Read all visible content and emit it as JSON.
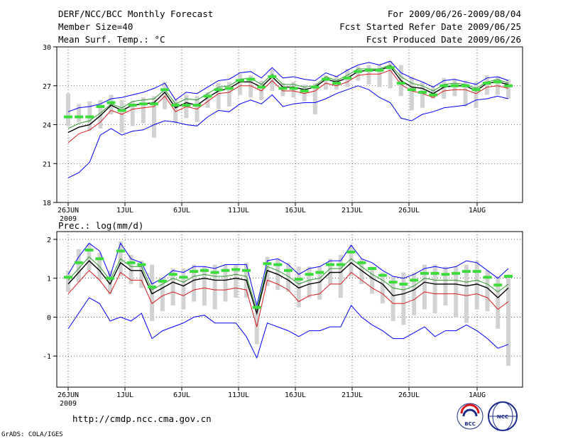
{
  "header": {
    "title": "DERF/NCC/BCC Monthly Forecast",
    "member": "Member Size=40",
    "variable": "Mean Surf. Temp.: °C",
    "period": "For 2009/06/26-2009/08/04",
    "refer": "Fcst Started Refer Date 2009/06/25",
    "produced": "Fcst Produced Date 2009/06/26"
  },
  "footer": {
    "url": "http://cmdp.ncc.cma.gov.cn",
    "grads": "GrADS: COLA/IGES",
    "logo1": "BCC",
    "logo2": "NCC"
  },
  "colors": {
    "box": "#d2d2d2",
    "median": "#3cdc3c",
    "max": "#0000ff",
    "mean": "#000000",
    "p1": "#d7191c",
    "p2": "#2c9a2c"
  },
  "chart_data": [
    {
      "type": "line",
      "title": "Mean Surf. Temp.: °C",
      "x_ticks": [
        "26JUN",
        "1JUL",
        "6JUL",
        "11JUL",
        "16JUL",
        "21JUL",
        "26JUL",
        "1AUG"
      ],
      "x_year": "2009",
      "y_ticks": [
        "18",
        "21",
        "24",
        "27",
        "30"
      ],
      "ylim": [
        18,
        30
      ],
      "days": 39,
      "series": [
        {
          "name": "max",
          "values": [
            25.0,
            25.3,
            25.4,
            25.6,
            26.0,
            26.1,
            26.3,
            26.5,
            26.8,
            27.2,
            25.9,
            26.5,
            26.4,
            26.9,
            27.4,
            27.5,
            28.0,
            28.1,
            27.6,
            28.4,
            27.6,
            27.7,
            27.5,
            27.4,
            28.0,
            27.7,
            28.2,
            28.6,
            28.8,
            28.6,
            28.9,
            28.0,
            27.6,
            27.3,
            26.9,
            27.4,
            27.5,
            27.3,
            27.1,
            27.6,
            27.7,
            27.4
          ]
        },
        {
          "name": "ens-upper",
          "values": [
            23.7,
            24.1,
            24.3,
            24.9,
            25.6,
            25.3,
            25.8,
            25.9,
            26.0,
            26.7,
            25.6,
            26.0,
            25.9,
            26.4,
            26.9,
            27.0,
            27.5,
            27.6,
            27.1,
            27.9,
            27.1,
            27.1,
            26.9,
            27.0,
            27.7,
            27.4,
            27.8,
            28.3,
            28.3,
            28.3,
            28.6,
            27.7,
            27.2,
            27.0,
            26.6,
            27.1,
            27.2,
            27.1,
            26.8,
            27.3,
            27.5,
            27.2
          ]
        },
        {
          "name": "ens-mean",
          "values": [
            23.4,
            23.8,
            24.0,
            24.7,
            25.5,
            25.1,
            25.5,
            25.6,
            25.7,
            26.5,
            25.3,
            25.7,
            25.5,
            26.1,
            26.6,
            26.8,
            27.3,
            27.3,
            26.9,
            27.7,
            26.9,
            26.9,
            26.7,
            26.9,
            27.5,
            27.3,
            27.6,
            28.1,
            28.2,
            28.2,
            28.5,
            27.4,
            26.9,
            26.8,
            26.4,
            26.9,
            27.0,
            27.0,
            26.6,
            27.2,
            27.3,
            27.1
          ]
        },
        {
          "name": "ens-lower",
          "values": [
            22.6,
            23.3,
            23.6,
            24.2,
            25.1,
            24.8,
            25.2,
            25.3,
            25.4,
            26.2,
            25.0,
            25.4,
            25.2,
            25.8,
            26.4,
            26.5,
            27.0,
            27.0,
            26.6,
            27.4,
            26.6,
            26.6,
            26.4,
            26.6,
            27.2,
            27.0,
            27.3,
            27.8,
            27.9,
            27.9,
            28.2,
            27.1,
            26.6,
            26.4,
            26.1,
            26.6,
            26.7,
            26.7,
            26.4,
            26.9,
            27.0,
            26.8
          ]
        },
        {
          "name": "min",
          "values": [
            19.9,
            20.3,
            21.1,
            23.2,
            23.7,
            23.2,
            23.5,
            23.6,
            24.0,
            24.3,
            24.2,
            24.0,
            23.9,
            24.6,
            25.1,
            25.0,
            25.6,
            25.9,
            25.6,
            26.3,
            25.4,
            25.6,
            25.7,
            25.7,
            26.0,
            26.4,
            26.7,
            27.0,
            26.7,
            26.1,
            25.7,
            24.5,
            24.3,
            24.8,
            25.0,
            25.3,
            25.4,
            25.5,
            25.9,
            26.0,
            26.2,
            26.0
          ]
        }
      ],
      "box_low": [
        23.9,
        24.2,
        23.5,
        23.7,
        24.8,
        23.4,
        23.9,
        24.1,
        23.0,
        25.2,
        24.1,
        24.5,
        24.2,
        25.3,
        25.2,
        25.4,
        26.3,
        26.1,
        25.9,
        26.6,
        26.2,
        26.1,
        25.8,
        24.8,
        26.7,
        26.7,
        26.9,
        27.4,
        27.1,
        26.9,
        26.8,
        26.2,
        25.1,
        25.3,
        26.0,
        26.0,
        26.2,
        25.4,
        25.3,
        26.3,
        26.3,
        26.0
      ],
      "box_high": [
        26.4,
        25.6,
        25.8,
        25.9,
        26.3,
        25.9,
        25.8,
        26.1,
        26.2,
        27.3,
        25.9,
        26.3,
        26.2,
        26.5,
        27.2,
        27.3,
        27.9,
        27.8,
        27.4,
        28.3,
        27.2,
        27.3,
        27.1,
        27.2,
        27.8,
        27.8,
        28.3,
        28.5,
        28.6,
        28.6,
        28.9,
        28.6,
        27.7,
        27.3,
        27.0,
        27.6,
        27.5,
        27.4,
        27.3,
        27.8,
        27.7,
        27.5
      ],
      "median": [
        24.6,
        24.6,
        24.6,
        25.4,
        25.7,
        25.1,
        25.5,
        25.6,
        25.6,
        26.7,
        25.5,
        25.5,
        25.5,
        26.2,
        26.7,
        26.8,
        27.4,
        27.5,
        26.9,
        27.7,
        26.8,
        26.8,
        26.6,
        26.9,
        27.5,
        27.2,
        27.6,
        28.1,
        28.2,
        28.2,
        28.4,
        27.2,
        26.7,
        26.5,
        26.3,
        27.0,
        27.0,
        27.0,
        26.7,
        27.2,
        27.3,
        27.0
      ]
    },
    {
      "type": "line",
      "title": "Prec.: log(mm/d)",
      "x_ticks": [
        "26JUN",
        "1JUL",
        "6JUL",
        "11JUL",
        "16JUL",
        "21JUL",
        "26JUL",
        "1AUG"
      ],
      "x_year": "2009",
      "y_ticks": [
        "-1",
        "0",
        "1",
        "2"
      ],
      "ylim": [
        -1.8,
        2.2
      ],
      "days": 39,
      "series": [
        {
          "name": "max",
          "values": [
            1.1,
            1.55,
            1.9,
            1.7,
            1.05,
            1.9,
            1.5,
            1.4,
            0.85,
            1.0,
            1.2,
            1.15,
            1.3,
            1.3,
            1.25,
            1.35,
            1.35,
            1.35,
            0.3,
            1.45,
            1.5,
            1.35,
            1.1,
            1.25,
            1.3,
            1.45,
            1.45,
            1.85,
            1.5,
            1.4,
            1.2,
            1.05,
            1.0,
            1.1,
            1.25,
            1.3,
            1.25,
            1.3,
            1.45,
            1.4,
            1.2,
            1.0,
            1.25
          ]
        },
        {
          "name": "ens-upper",
          "values": [
            0.95,
            1.25,
            1.55,
            1.3,
            0.95,
            1.5,
            1.3,
            1.3,
            0.7,
            0.85,
            1.0,
            0.9,
            1.05,
            1.1,
            1.05,
            1.05,
            1.1,
            1.05,
            0.2,
            1.3,
            1.2,
            1.05,
            0.85,
            0.95,
            1.0,
            1.25,
            1.25,
            1.5,
            1.3,
            1.1,
            0.95,
            0.75,
            0.7,
            0.8,
            1.0,
            0.95,
            0.95,
            0.95,
            0.9,
            0.95,
            0.85,
            0.65,
            0.85
          ]
        },
        {
          "name": "ens-mean",
          "values": [
            0.85,
            1.15,
            1.45,
            1.2,
            0.85,
            1.4,
            1.2,
            1.2,
            0.6,
            0.75,
            0.9,
            0.8,
            0.95,
            1.0,
            0.95,
            0.95,
            1.0,
            0.95,
            0.1,
            1.2,
            1.1,
            0.95,
            0.75,
            0.85,
            0.9,
            1.15,
            1.15,
            1.4,
            1.2,
            1.0,
            0.85,
            0.55,
            0.6,
            0.7,
            0.9,
            0.85,
            0.85,
            0.85,
            0.8,
            0.85,
            0.75,
            0.5,
            0.75
          ]
        },
        {
          "name": "ens-lower",
          "values": [
            0.6,
            0.9,
            1.2,
            0.95,
            0.6,
            1.15,
            0.95,
            0.95,
            0.35,
            0.55,
            0.65,
            0.55,
            0.7,
            0.75,
            0.7,
            0.7,
            0.75,
            0.7,
            -0.25,
            0.95,
            0.85,
            0.7,
            0.4,
            0.55,
            0.6,
            0.85,
            0.85,
            1.15,
            0.95,
            0.75,
            0.6,
            0.35,
            0.35,
            0.45,
            0.65,
            0.6,
            0.6,
            0.6,
            0.55,
            0.6,
            0.5,
            0.2,
            0.4
          ]
        },
        {
          "name": "min",
          "values": [
            -0.3,
            0.1,
            0.5,
            0.35,
            -0.1,
            0.0,
            -0.1,
            0.1,
            -0.55,
            -0.35,
            -0.25,
            -0.15,
            0.0,
            0.05,
            -0.15,
            -0.15,
            -0.15,
            -0.5,
            -1.05,
            -0.15,
            -0.25,
            -0.35,
            -0.5,
            -0.35,
            -0.35,
            -0.25,
            -0.25,
            0.3,
            0.0,
            -0.2,
            -0.35,
            -0.55,
            -0.55,
            -0.4,
            -0.25,
            -0.5,
            -0.35,
            -0.35,
            -0.2,
            -0.35,
            -0.55,
            -0.8,
            -0.7
          ]
        }
      ],
      "box_low": [
        0.65,
        0.9,
        1.2,
        0.95,
        0.6,
        1.05,
        0.85,
        0.75,
        -0.1,
        0.15,
        0.3,
        0.2,
        0.4,
        0.3,
        0.2,
        0.4,
        0.5,
        0.5,
        -0.7,
        0.8,
        0.7,
        0.65,
        0.25,
        0.5,
        0.45,
        0.85,
        0.5,
        1.05,
        0.85,
        0.6,
        0.35,
        -0.1,
        -0.2,
        0.05,
        0.2,
        0.1,
        0.3,
        0.0,
        -0.15,
        0.2,
        0.15,
        -0.3,
        -1.25
      ],
      "box_high": [
        1.2,
        1.75,
        1.9,
        1.65,
        1.2,
        1.95,
        1.6,
        1.45,
        1.35,
        1.0,
        1.25,
        1.25,
        1.35,
        1.3,
        1.35,
        1.35,
        1.35,
        1.4,
        0.3,
        1.55,
        1.5,
        1.4,
        1.3,
        1.3,
        1.3,
        1.5,
        1.6,
        1.85,
        1.5,
        1.3,
        1.15,
        1.05,
        1.15,
        1.15,
        1.35,
        1.35,
        1.3,
        1.3,
        1.35,
        1.45,
        1.2,
        1.05,
        1.1
      ]
    }
  ]
}
